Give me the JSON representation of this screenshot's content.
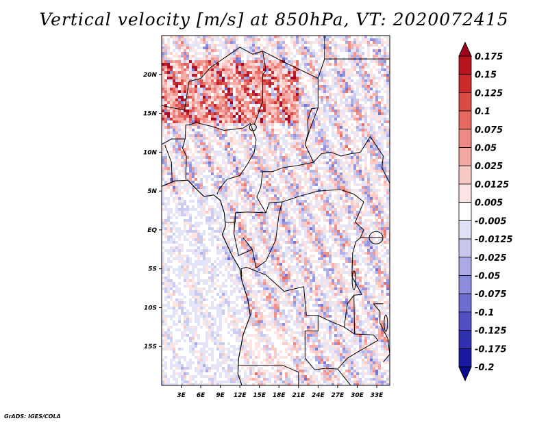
{
  "title": "Vertical velocity [m/s] at 850hPa, VT: 2020072415",
  "footer": "GrADS: IGES/COLA",
  "chart_data": {
    "type": "heatmap",
    "title": "Vertical velocity [m/s] at 850hPa, VT: 2020072415",
    "variable": "Vertical velocity",
    "units": "m/s",
    "level": "850hPa",
    "valid_time": "2020072415",
    "xlim": [
      0,
      35
    ],
    "ylim": [
      -20,
      25
    ],
    "x_ticks": [
      3,
      6,
      9,
      12,
      15,
      18,
      21,
      24,
      27,
      30,
      33
    ],
    "x_tick_labels": [
      "3E",
      "6E",
      "9E",
      "12E",
      "15E",
      "18E",
      "21E",
      "24E",
      "27E",
      "30E",
      "33E"
    ],
    "y_ticks": [
      20,
      15,
      10,
      5,
      0,
      -5,
      -10,
      -15
    ],
    "y_tick_labels": [
      "20N",
      "15N",
      "10N",
      "5N",
      "EQ",
      "5S",
      "10S",
      "15S"
    ],
    "colorbar": {
      "levels": [
        0.175,
        0.15,
        0.125,
        0.1,
        0.075,
        0.05,
        0.025,
        0.0125,
        0.005,
        -0.005,
        -0.0125,
        -0.025,
        -0.05,
        -0.075,
        -0.1,
        -0.125,
        -0.175,
        -0.2
      ],
      "labels": [
        "0.175",
        "0.15",
        "0.125",
        "0.1",
        "0.075",
        "0.05",
        "0.025",
        "0.0125",
        "0.005",
        "-0.005",
        "-0.0125",
        "-0.025",
        "-0.05",
        "-0.075",
        "-0.1",
        "-0.125",
        "-0.175",
        "-0.2"
      ],
      "colors": [
        "#a0001c",
        "#b8141e",
        "#cc2a2a",
        "#dc4a44",
        "#e66a62",
        "#ee8a84",
        "#f4a8a4",
        "#f8c8c4",
        "#fce4e2",
        "#ffffff",
        "#e2e2f6",
        "#c8c8ee",
        "#aaaae6",
        "#8c8cdc",
        "#6e6ed0",
        "#5050c4",
        "#3030b0",
        "#1a1aa0",
        "#0a0a8c"
      ]
    },
    "legend_position": "right",
    "grid": false
  }
}
